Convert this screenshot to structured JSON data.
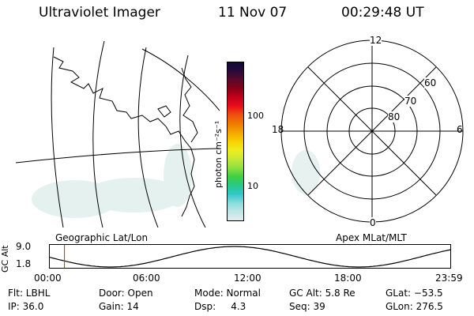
{
  "header": {
    "title": "Ultraviolet Imager",
    "date": "11 Nov 07",
    "time": "00:29:48 UT"
  },
  "colorbar": {
    "unit_label": "photon cm⁻²s⁻¹",
    "ticks": [
      "100",
      "10"
    ],
    "colors": [
      "#0b0b33",
      "#2a0a3a",
      "#5a0a2a",
      "#8a0018",
      "#c4001a",
      "#e8101a",
      "#f05010",
      "#f07a00",
      "#f5a600",
      "#f8d000",
      "#eeee20",
      "#c8e838",
      "#8ee040",
      "#40d040",
      "#28c888",
      "#30c8c8",
      "#88dcdc",
      "#bfe6e6",
      "#e4eeee"
    ]
  },
  "left_panel": {
    "label": "Geographic Lat/Lon"
  },
  "polar_panel": {
    "label": "Apex MLat/MLT",
    "mlt_labels": {
      "top": "12",
      "left": "18",
      "right": "6",
      "bottom": "0"
    },
    "lat_labels": [
      "60",
      "70",
      "80"
    ]
  },
  "altitude_plot": {
    "ylabel": "GC Alt",
    "y_ticks": [
      "9.0",
      "1.8"
    ],
    "x_ticks": [
      "00:00",
      "06:00",
      "12:00",
      "18:00",
      "23:59"
    ],
    "marker_hour": 0.5,
    "colors": {
      "curve": "#000000",
      "marker": "#cc2222"
    }
  },
  "info": {
    "filter": "Flt: LBHL",
    "ip": "IP: 36.0",
    "door": "Door: Open",
    "gain": "Gain: 14",
    "mode": "Mode: Normal",
    "dsp": "Dsp:     4.3",
    "gc_alt": "GC Alt: 5.8 Re",
    "seq": "Seq: 39",
    "glat": "GLat: −53.5",
    "glon": "GLon: 276.5"
  }
}
